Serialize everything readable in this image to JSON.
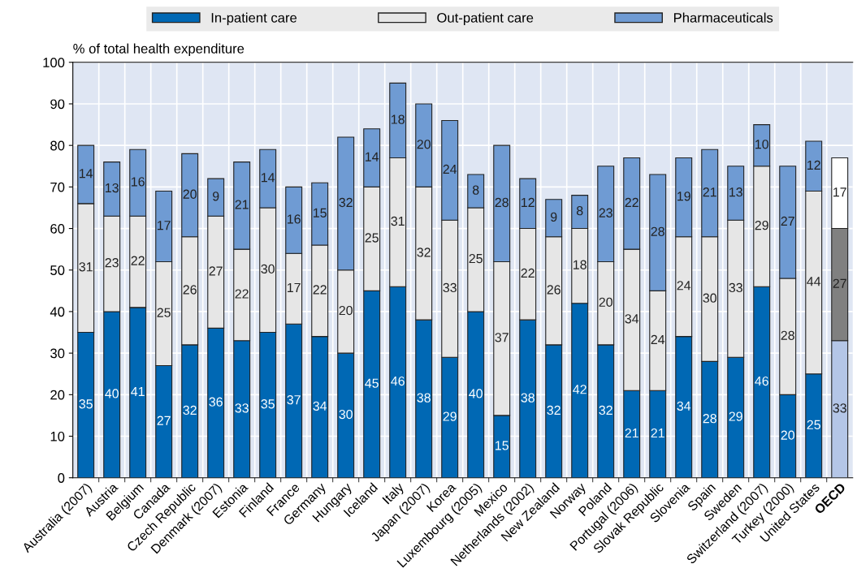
{
  "chart_data": {
    "type": "bar",
    "stacked": true,
    "ylabel": "% of total health expenditure",
    "categories": [
      "Australia (2007)",
      "Austria",
      "Belgium",
      "Canada",
      "Czech Republic",
      "Denmark (2007)",
      "Estonia",
      "Finland",
      "France",
      "Germany",
      "Hungary",
      "Iceland",
      "Italy",
      "Japan (2007)",
      "Korea",
      "Luxembourg (2005)",
      "Mexico",
      "Netherlands (2002)",
      "New Zealand",
      "Norway",
      "Poland",
      "Portugal (2006)",
      "Slovak Republic",
      "Slovenia",
      "Spain",
      "Sweden",
      "Switzerland (2007)",
      "Turkey (2000)",
      "United States",
      "OECD"
    ],
    "series": [
      {
        "name": "In-patient care",
        "color": "#0068b4",
        "colors": [
          "#0068b4",
          "#0068b4",
          "#0068b4",
          "#0068b4",
          "#0068b4",
          "#0068b4",
          "#0068b4",
          "#0068b4",
          "#0068b4",
          "#0068b4",
          "#0068b4",
          "#0068b4",
          "#0068b4",
          "#0068b4",
          "#0068b4",
          "#0068b4",
          "#0068b4",
          "#0068b4",
          "#0068b4",
          "#0068b4",
          "#0068b4",
          "#0068b4",
          "#0068b4",
          "#0068b4",
          "#0068b4",
          "#0068b4",
          "#0068b4",
          "#0068b4",
          "#0068b4",
          "#b4c6e7"
        ],
        "values": [
          35,
          40,
          41,
          27,
          32,
          36,
          33,
          35,
          37,
          34,
          30,
          45,
          46,
          38,
          29,
          40,
          15,
          38,
          32,
          42,
          32,
          21,
          21,
          34,
          28,
          29,
          46,
          20,
          25,
          33
        ]
      },
      {
        "name": "Out-patient care",
        "color": "#e6e6e6",
        "colors": [
          "#e6e6e6",
          "#e6e6e6",
          "#e6e6e6",
          "#e6e6e6",
          "#e6e6e6",
          "#e6e6e6",
          "#e6e6e6",
          "#e6e6e6",
          "#e6e6e6",
          "#e6e6e6",
          "#e6e6e6",
          "#e6e6e6",
          "#e6e6e6",
          "#e6e6e6",
          "#e6e6e6",
          "#e6e6e6",
          "#e6e6e6",
          "#e6e6e6",
          "#e6e6e6",
          "#e6e6e6",
          "#e6e6e6",
          "#e6e6e6",
          "#e6e6e6",
          "#e6e6e6",
          "#e6e6e6",
          "#e6e6e6",
          "#e6e6e6",
          "#e6e6e6",
          "#e6e6e6",
          "#808080"
        ],
        "values": [
          31,
          23,
          22,
          25,
          26,
          27,
          22,
          30,
          17,
          22,
          20,
          25,
          31,
          32,
          33,
          25,
          37,
          22,
          26,
          18,
          20,
          34,
          24,
          24,
          30,
          33,
          29,
          28,
          44,
          27
        ]
      },
      {
        "name": "Pharmaceuticals",
        "color": "#6f9bd3",
        "colors": [
          "#6f9bd3",
          "#6f9bd3",
          "#6f9bd3",
          "#6f9bd3",
          "#6f9bd3",
          "#6f9bd3",
          "#6f9bd3",
          "#6f9bd3",
          "#6f9bd3",
          "#6f9bd3",
          "#6f9bd3",
          "#6f9bd3",
          "#6f9bd3",
          "#6f9bd3",
          "#6f9bd3",
          "#6f9bd3",
          "#6f9bd3",
          "#6f9bd3",
          "#6f9bd3",
          "#6f9bd3",
          "#6f9bd3",
          "#6f9bd3",
          "#6f9bd3",
          "#6f9bd3",
          "#6f9bd3",
          "#6f9bd3",
          "#6f9bd3",
          "#6f9bd3",
          "#6f9bd3",
          "#ffffff"
        ],
        "values": [
          14,
          13,
          16,
          17,
          20,
          9,
          21,
          14,
          16,
          15,
          32,
          14,
          18,
          20,
          24,
          8,
          28,
          12,
          9,
          8,
          23,
          22,
          28,
          19,
          21,
          13,
          10,
          27,
          12,
          17
        ]
      }
    ],
    "ylim": [
      0,
      100
    ],
    "yticks": [
      0,
      10,
      20,
      30,
      40,
      50,
      60,
      70,
      80,
      90,
      100
    ],
    "grid": true,
    "legend": "top",
    "data_labels": true
  }
}
